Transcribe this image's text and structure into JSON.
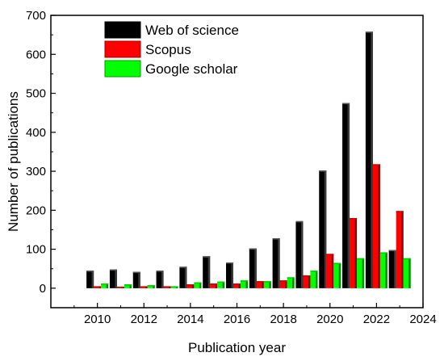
{
  "chart_data": {
    "type": "bar",
    "x": [
      2010,
      2011,
      2012,
      2013,
      2014,
      2015,
      2016,
      2017,
      2018,
      2019,
      2020,
      2021,
      2022,
      2023
    ],
    "series": [
      {
        "name": "Web of science",
        "color": "#000000",
        "values": [
          45,
          48,
          42,
          45,
          55,
          82,
          66,
          102,
          128,
          172,
          302,
          475,
          658,
          98
        ]
      },
      {
        "name": "Scopus",
        "color": "#ff0000",
        "values": [
          5,
          4,
          5,
          5,
          10,
          12,
          12,
          18,
          20,
          33,
          88,
          180,
          318,
          198
        ]
      },
      {
        "name": "Google scholar",
        "color": "#00ff00",
        "values": [
          12,
          10,
          8,
          5,
          15,
          17,
          20,
          18,
          28,
          45,
          65,
          77,
          92,
          77
        ]
      }
    ],
    "title": "",
    "xlabel": "Publication year",
    "ylabel": "Number of publications",
    "xlim": [
      2008,
      2024
    ],
    "ylim": [
      -50,
      700
    ],
    "xticks": [
      2010,
      2012,
      2014,
      2016,
      2018,
      2020,
      2022,
      2024
    ],
    "yticks": [
      0,
      100,
      200,
      300,
      400,
      500,
      600,
      700
    ],
    "grid": false,
    "legend_position": "top-left"
  }
}
